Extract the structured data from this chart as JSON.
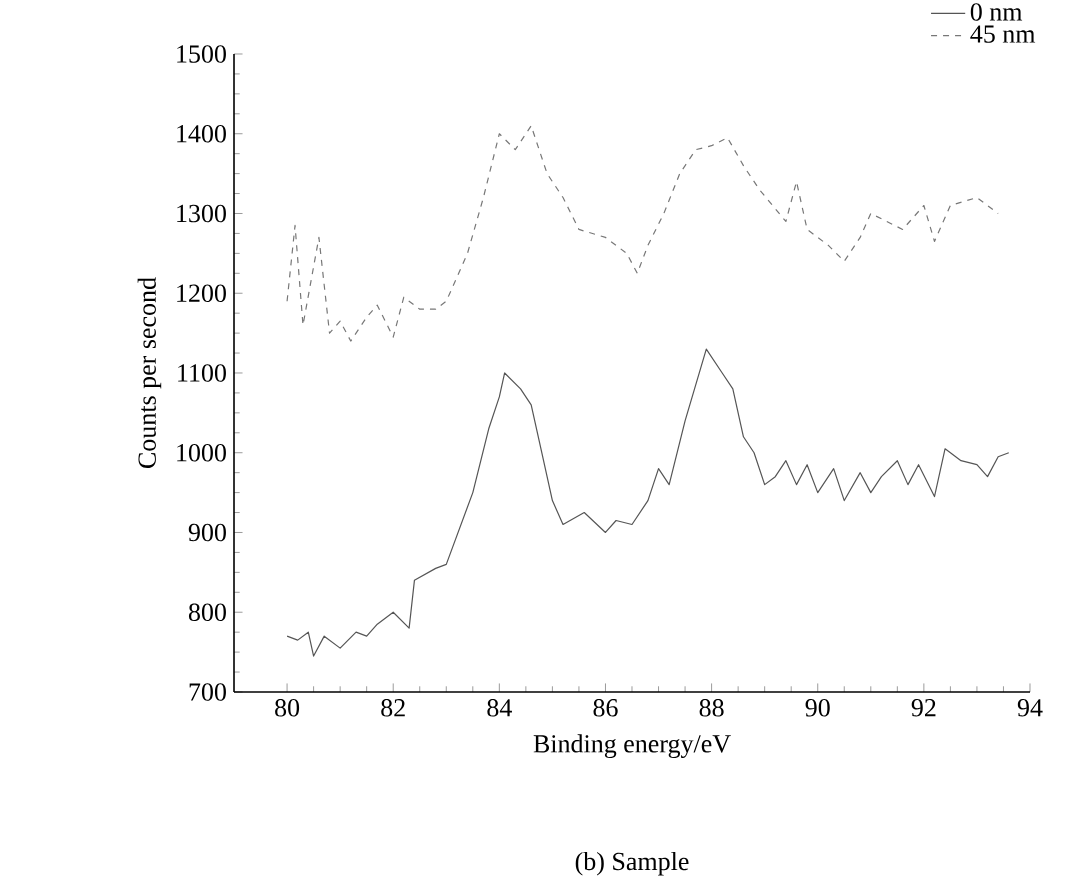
{
  "chart_data": {
    "type": "line",
    "xlabel": "Binding energy/eV",
    "ylabel": "Counts per second",
    "annotations": [
      "(b) Sample"
    ],
    "xlim": [
      79,
      94
    ],
    "ylim": [
      700,
      1500
    ],
    "xticks": [
      80,
      82,
      84,
      86,
      88,
      90,
      92,
      94
    ],
    "yticks": [
      700,
      800,
      900,
      1000,
      1100,
      1200,
      1300,
      1400,
      1500
    ],
    "grid": false,
    "legend": "top right",
    "marker": "none",
    "series": [
      {
        "name": "0 nm",
        "color": "#555555",
        "line_style": "solid",
        "x": [
          80.0,
          80.2,
          80.4,
          80.5,
          80.7,
          81.0,
          81.3,
          81.5,
          81.7,
          82.0,
          82.3,
          82.4,
          82.8,
          83.0,
          83.5,
          83.8,
          84.0,
          84.1,
          84.4,
          84.6,
          84.8,
          85.0,
          85.2,
          85.6,
          86.0,
          86.2,
          86.5,
          86.8,
          87.0,
          87.2,
          87.5,
          87.9,
          88.2,
          88.4,
          88.6,
          88.8,
          89.0,
          89.2,
          89.4,
          89.6,
          89.8,
          90.0,
          90.3,
          90.5,
          90.8,
          91.0,
          91.2,
          91.5,
          91.7,
          91.9,
          92.2,
          92.4,
          92.7,
          93.0,
          93.2,
          93.4,
          93.6
        ],
        "values": [
          770,
          765,
          775,
          745,
          770,
          755,
          775,
          770,
          785,
          800,
          780,
          840,
          855,
          860,
          950,
          1030,
          1070,
          1100,
          1080,
          1060,
          1000,
          940,
          910,
          925,
          900,
          915,
          910,
          940,
          980,
          960,
          1040,
          1130,
          1100,
          1080,
          1020,
          1000,
          960,
          970,
          990,
          960,
          985,
          950,
          980,
          940,
          975,
          950,
          970,
          990,
          960,
          985,
          945,
          1005,
          990,
          985,
          970,
          995,
          1000
        ]
      },
      {
        "name": "45 nm",
        "color": "#777777",
        "line_style": "dashed",
        "x": [
          80.0,
          80.15,
          80.3,
          80.6,
          80.8,
          81.0,
          81.2,
          81.5,
          81.7,
          82.0,
          82.2,
          82.5,
          82.8,
          83.0,
          83.4,
          83.7,
          84.0,
          84.3,
          84.6,
          84.9,
          85.2,
          85.5,
          86.0,
          86.4,
          86.6,
          86.8,
          87.1,
          87.4,
          87.7,
          88.0,
          88.3,
          88.6,
          88.9,
          89.4,
          89.6,
          89.8,
          90.2,
          90.5,
          90.8,
          91.0,
          91.3,
          91.6,
          92.0,
          92.2,
          92.5,
          93.0,
          93.4
        ],
        "values": [
          1190,
          1285,
          1160,
          1270,
          1150,
          1165,
          1140,
          1170,
          1185,
          1145,
          1195,
          1180,
          1180,
          1190,
          1250,
          1320,
          1400,
          1380,
          1410,
          1350,
          1320,
          1280,
          1270,
          1250,
          1225,
          1260,
          1300,
          1350,
          1380,
          1385,
          1395,
          1360,
          1330,
          1290,
          1340,
          1280,
          1260,
          1240,
          1270,
          1300,
          1290,
          1280,
          1310,
          1265,
          1310,
          1320,
          1300
        ]
      }
    ]
  }
}
